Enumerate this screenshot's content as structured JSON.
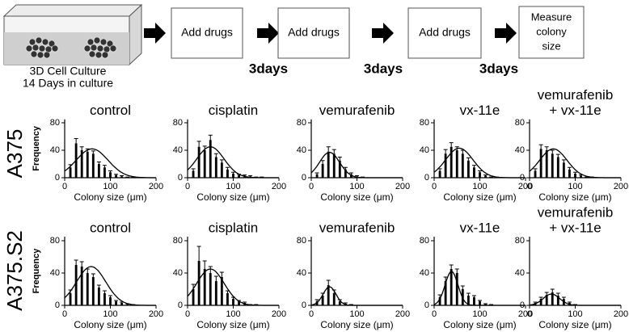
{
  "workflow": {
    "culture": [
      "3D Cell Culture",
      "14  Days in culture"
    ],
    "steps": [
      [
        "Add drugs"
      ],
      [
        "Add drugs"
      ],
      [
        "Add drugs"
      ],
      [
        "Measure",
        "colony",
        "size"
      ]
    ],
    "intervals": [
      "3days",
      "3days",
      "3days"
    ]
  },
  "row_labels": [
    "A375",
    "A375.S2"
  ],
  "chart_data": [
    {
      "type": "bar",
      "title": [
        "control"
      ],
      "ylabel": "Frequency",
      "xlabel": "Colony size (μm)",
      "color": "#000000",
      "x": [
        12.5,
        25,
        37.5,
        50,
        62.5,
        75,
        87.5,
        100,
        112.5,
        125,
        137.5,
        150,
        162.5,
        175
      ],
      "values": [
        15,
        50,
        40,
        38,
        35,
        20,
        15,
        8,
        4,
        2,
        1,
        1,
        0,
        0
      ],
      "errors": [
        4,
        7,
        5,
        4,
        4,
        3,
        3,
        2,
        1,
        1,
        0,
        0,
        0,
        0
      ],
      "fit": {
        "amplitude": 42,
        "mean": 60,
        "sd": 35
      },
      "xlim": [
        0,
        200
      ],
      "ylim": [
        0,
        85
      ],
      "xticks": [
        0,
        100,
        200
      ],
      "yticks": [
        0,
        40,
        80
      ]
    },
    {
      "type": "bar",
      "title": [
        "cisplatin"
      ],
      "xlabel": "Colony size (μm)",
      "color": "#000000",
      "x": [
        12.5,
        25,
        37.5,
        50,
        62.5,
        75,
        87.5,
        100,
        112.5,
        125,
        137.5,
        150,
        162.5,
        175
      ],
      "values": [
        10,
        45,
        40,
        55,
        30,
        22,
        12,
        6,
        4,
        3,
        2,
        1,
        1,
        0
      ],
      "errors": [
        3,
        8,
        6,
        7,
        5,
        4,
        3,
        2,
        1,
        1,
        1,
        0,
        0,
        0
      ],
      "fit": {
        "amplitude": 45,
        "mean": 50,
        "sd": 30
      },
      "xlim": [
        0,
        200
      ],
      "ylim": [
        0,
        85
      ],
      "xticks": [
        0,
        100,
        200
      ],
      "yticks": [
        0,
        40,
        80
      ]
    },
    {
      "type": "bar",
      "title": [
        "vemurafenib"
      ],
      "xlabel": "Colony size (μm)",
      "color": "#000000",
      "x": [
        12.5,
        25,
        37.5,
        50,
        62.5,
        75,
        87.5,
        100,
        112.5,
        125,
        137.5,
        150,
        162.5,
        175
      ],
      "values": [
        5,
        20,
        38,
        35,
        25,
        12,
        5,
        2,
        1,
        0,
        0,
        0,
        0,
        0
      ],
      "errors": [
        2,
        5,
        7,
        6,
        5,
        3,
        2,
        1,
        0,
        0,
        0,
        0,
        0,
        0
      ],
      "fit": {
        "amplitude": 37,
        "mean": 40,
        "sd": 22
      },
      "xlim": [
        0,
        200
      ],
      "ylim": [
        0,
        85
      ],
      "xticks": [
        0,
        100,
        200
      ],
      "yticks": [
        0,
        40,
        80
      ]
    },
    {
      "type": "bar",
      "title": [
        "vx-11e"
      ],
      "xlabel": "Colony size (μm)",
      "color": "#000000",
      "x": [
        12.5,
        25,
        37.5,
        50,
        62.5,
        75,
        87.5,
        100,
        112.5,
        125,
        137.5,
        150,
        162.5,
        175
      ],
      "values": [
        10,
        35,
        45,
        40,
        35,
        25,
        15,
        8,
        3,
        1,
        0,
        0,
        0,
        0
      ],
      "errors": [
        3,
        6,
        6,
        5,
        5,
        4,
        3,
        2,
        1,
        0,
        0,
        0,
        0,
        0
      ],
      "fit": {
        "amplitude": 43,
        "mean": 55,
        "sd": 30
      },
      "xlim": [
        0,
        200
      ],
      "ylim": [
        0,
        85
      ],
      "xticks": [
        0,
        100,
        200
      ],
      "yticks": [
        0,
        40,
        80
      ]
    },
    {
      "type": "bar",
      "title": [
        "vemurafenib",
        "+ vx-11e"
      ],
      "xlabel": "Colony size (μm)",
      "color": "#000000",
      "x": [
        12.5,
        25,
        37.5,
        50,
        62.5,
        75,
        87.5,
        100,
        112.5,
        125,
        137.5,
        150,
        162.5,
        175
      ],
      "values": [
        10,
        42,
        40,
        35,
        30,
        22,
        12,
        6,
        3,
        1,
        1,
        0,
        0,
        0
      ],
      "errors": [
        3,
        6,
        5,
        5,
        4,
        4,
        3,
        2,
        1,
        0,
        0,
        0,
        0,
        0
      ],
      "fit": {
        "amplitude": 42,
        "mean": 52,
        "sd": 30
      },
      "xlim": [
        0,
        200
      ],
      "ylim": [
        0,
        85
      ],
      "xticks": [
        0,
        100,
        200
      ],
      "yticks": [
        0,
        40,
        80
      ]
    },
    {
      "type": "bar",
      "title": [
        "control"
      ],
      "ylabel": "Frequency",
      "xlabel": "Colony size (μm)",
      "color": "#000000",
      "x": [
        12.5,
        25,
        37.5,
        50,
        62.5,
        75,
        87.5,
        100,
        112.5,
        125,
        137.5,
        150,
        162.5,
        175
      ],
      "values": [
        15,
        50,
        48,
        40,
        35,
        22,
        15,
        10,
        5,
        3,
        2,
        1,
        0,
        0
      ],
      "errors": [
        4,
        6,
        6,
        5,
        4,
        3,
        3,
        2,
        1,
        1,
        0,
        0,
        0,
        0
      ],
      "fit": {
        "amplitude": 48,
        "mean": 58,
        "sd": 32
      },
      "xlim": [
        0,
        200
      ],
      "ylim": [
        0,
        85
      ],
      "xticks": [
        0,
        100,
        200
      ],
      "yticks": [
        0,
        40,
        80
      ]
    },
    {
      "type": "bar",
      "title": [
        "cisplatin"
      ],
      "xlabel": "Colony size (μm)",
      "color": "#000000",
      "x": [
        12.5,
        25,
        37.5,
        50,
        62.5,
        75,
        87.5,
        100,
        112.5,
        125,
        137.5,
        150,
        162.5,
        175
      ],
      "values": [
        20,
        55,
        45,
        40,
        30,
        35,
        15,
        8,
        5,
        3,
        1,
        1,
        0,
        0
      ],
      "errors": [
        6,
        18,
        10,
        8,
        6,
        6,
        3,
        2,
        1,
        1,
        0,
        0,
        0,
        0
      ],
      "fit": {
        "amplitude": 45,
        "mean": 50,
        "sd": 30
      },
      "xlim": [
        0,
        200
      ],
      "ylim": [
        0,
        85
      ],
      "xticks": [
        0,
        100,
        200
      ],
      "yticks": [
        0,
        40,
        80
      ]
    },
    {
      "type": "bar",
      "title": [
        "vemurafenib"
      ],
      "xlabel": "Colony size (μm)",
      "color": "#000000",
      "x": [
        12.5,
        25,
        37.5,
        50,
        62.5,
        75,
        87.5,
        100,
        112.5,
        125,
        137.5,
        150,
        162.5,
        175
      ],
      "values": [
        5,
        12,
        25,
        15,
        5,
        2,
        1,
        0,
        0,
        0,
        0,
        0,
        0,
        0
      ],
      "errors": [
        2,
        3,
        6,
        4,
        2,
        1,
        0,
        0,
        0,
        0,
        0,
        0,
        0,
        0
      ],
      "fit": {
        "amplitude": 23,
        "mean": 40,
        "sd": 14
      },
      "xlim": [
        0,
        200
      ],
      "ylim": [
        0,
        85
      ],
      "xticks": [
        0,
        100,
        200
      ],
      "yticks": [
        0,
        40,
        80
      ]
    },
    {
      "type": "bar",
      "title": [
        "vx-11e"
      ],
      "xlabel": "Colony size (μm)",
      "color": "#000000",
      "x": [
        12.5,
        25,
        37.5,
        50,
        62.5,
        75,
        87.5,
        100,
        112.5,
        125,
        137.5,
        150,
        162.5,
        175
      ],
      "values": [
        10,
        30,
        45,
        40,
        20,
        12,
        10,
        5,
        2,
        1,
        0,
        0,
        0,
        0
      ],
      "errors": [
        3,
        5,
        5,
        5,
        4,
        3,
        2,
        1,
        0,
        0,
        0,
        0,
        0,
        0
      ],
      "fit": {
        "amplitude": 42,
        "mean": 38,
        "sd": 14
      },
      "xlim": [
        0,
        200
      ],
      "ylim": [
        0,
        85
      ],
      "xticks": [
        0,
        100,
        200
      ],
      "yticks": [
        0,
        40,
        80
      ]
    },
    {
      "type": "bar",
      "title": [
        "vemurafenib",
        "+ vx-11e"
      ],
      "xlabel": "Colony size (μm)",
      "color": "#000000",
      "x": [
        12.5,
        25,
        37.5,
        50,
        62.5,
        75,
        87.5,
        100,
        112.5,
        125,
        137.5,
        150,
        162.5,
        175
      ],
      "values": [
        3,
        8,
        13,
        16,
        12,
        8,
        3,
        1,
        0,
        0,
        0,
        0,
        0,
        0
      ],
      "errors": [
        1,
        2,
        3,
        4,
        3,
        2,
        1,
        0,
        0,
        0,
        0,
        0,
        0,
        0
      ],
      "fit": {
        "amplitude": 14,
        "mean": 48,
        "sd": 18
      },
      "xlim": [
        0,
        200
      ],
      "ylim": [
        0,
        85
      ],
      "xticks": [
        0,
        100,
        200
      ],
      "yticks": [
        0,
        40,
        80
      ]
    }
  ]
}
